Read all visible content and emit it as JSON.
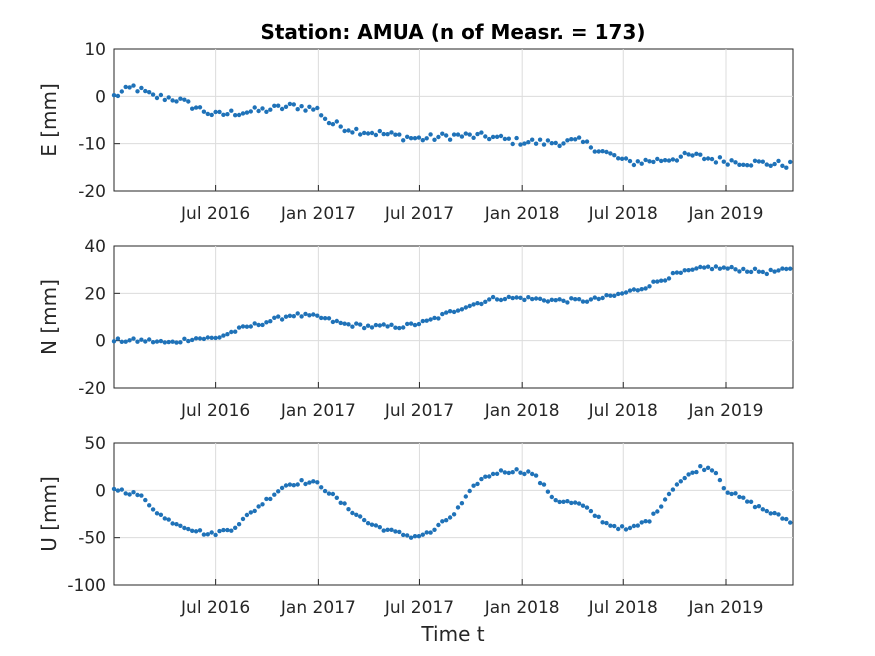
{
  "figure": {
    "title": "Station: AMUA (n of Measr. = 173)",
    "xlabel": "Time t"
  },
  "chart_data": [
    {
      "type": "scatter",
      "ylabel": "E [mm]",
      "xlim": [
        "2016-01-01",
        "2019-05-01"
      ],
      "ylim": [
        -20,
        10
      ],
      "yticks": [
        "10",
        "0",
        "-10",
        "-20"
      ],
      "xticks": [
        {
          "label": "Jul 2016",
          "date": "2016-07-01"
        },
        {
          "label": "Jan 2017",
          "date": "2017-01-01"
        },
        {
          "label": "Jul 2017",
          "date": "2017-07-01"
        },
        {
          "label": "Jan 2018",
          "date": "2018-01-01"
        },
        {
          "label": "Jul 2018",
          "date": "2018-07-01"
        },
        {
          "label": "Jan 2019",
          "date": "2019-01-01"
        }
      ],
      "grid": true,
      "color": "#1f72b8",
      "series": [
        {
          "knots": [
            [
              "2016-01-01",
              0
            ],
            [
              "2016-02-05",
              2
            ],
            [
              "2016-03-10",
              0
            ],
            [
              "2016-04-20",
              -0.5
            ],
            [
              "2016-05-20",
              -2
            ],
            [
              "2016-06-30",
              -4
            ],
            [
              "2016-08-01",
              -3.5
            ],
            [
              "2016-09-20",
              -3
            ],
            [
              "2016-11-20",
              -2
            ],
            [
              "2016-12-31",
              -2.8
            ],
            [
              "2017-01-20",
              -5.5
            ],
            [
              "2017-03-01",
              -7
            ],
            [
              "2017-05-01",
              -8
            ],
            [
              "2017-07-01",
              -9
            ],
            [
              "2017-09-01",
              -8.3
            ],
            [
              "2017-11-01",
              -8.5
            ],
            [
              "2017-12-20",
              -9.5
            ],
            [
              "2018-02-15",
              -9.8
            ],
            [
              "2018-04-15",
              -9.5
            ],
            [
              "2018-06-01",
              -12
            ],
            [
              "2018-07-10",
              -14
            ],
            [
              "2018-09-01",
              -13.5
            ],
            [
              "2018-11-01",
              -12.5
            ],
            [
              "2018-12-20",
              -13.5
            ],
            [
              "2019-02-15",
              -14
            ],
            [
              "2019-05-01",
              -14.5
            ]
          ],
          "noise": 0.8
        }
      ]
    },
    {
      "type": "scatter",
      "ylabel": "N [mm]",
      "xlim": [
        "2016-01-01",
        "2019-05-01"
      ],
      "ylim": [
        -20,
        40
      ],
      "yticks": [
        "40",
        "20",
        "0",
        "-20"
      ],
      "xticks": [
        {
          "label": "Jul 2016",
          "date": "2016-07-01"
        },
        {
          "label": "Jan 2017",
          "date": "2017-01-01"
        },
        {
          "label": "Jul 2017",
          "date": "2017-07-01"
        },
        {
          "label": "Jan 2018",
          "date": "2018-01-01"
        },
        {
          "label": "Jul 2018",
          "date": "2018-07-01"
        },
        {
          "label": "Jan 2019",
          "date": "2019-01-01"
        }
      ],
      "grid": true,
      "color": "#1f72b8",
      "series": [
        {
          "knots": [
            [
              "2016-01-01",
              0
            ],
            [
              "2016-03-01",
              0
            ],
            [
              "2016-04-10",
              -1
            ],
            [
              "2016-05-20",
              1
            ],
            [
              "2016-07-01",
              1
            ],
            [
              "2016-08-15",
              5
            ],
            [
              "2016-10-01",
              8
            ],
            [
              "2016-11-15",
              11
            ],
            [
              "2017-01-01",
              10
            ],
            [
              "2017-02-15",
              7
            ],
            [
              "2017-04-01",
              6
            ],
            [
              "2017-06-01",
              6
            ],
            [
              "2017-07-15",
              8
            ],
            [
              "2017-09-15",
              14
            ],
            [
              "2017-11-15",
              18
            ],
            [
              "2018-01-01",
              18
            ],
            [
              "2018-03-01",
              17
            ],
            [
              "2018-05-01",
              17
            ],
            [
              "2018-06-15",
              19
            ],
            [
              "2018-08-01",
              22
            ],
            [
              "2018-10-01",
              28
            ],
            [
              "2018-12-01",
              31
            ],
            [
              "2019-02-01",
              30
            ],
            [
              "2019-03-15",
              29
            ],
            [
              "2019-05-01",
              30
            ]
          ],
          "noise": 0.9
        }
      ]
    },
    {
      "type": "scatter",
      "ylabel": "U [mm]",
      "xlim": [
        "2016-01-01",
        "2019-05-01"
      ],
      "ylim": [
        -100,
        50
      ],
      "yticks": [
        "50",
        "0",
        "-50",
        "-100"
      ],
      "xticks": [
        {
          "label": "Jul 2016",
          "date": "2016-07-01"
        },
        {
          "label": "Jan 2017",
          "date": "2017-01-01"
        },
        {
          "label": "Jul 2017",
          "date": "2017-07-01"
        },
        {
          "label": "Jan 2018",
          "date": "2018-01-01"
        },
        {
          "label": "Jul 2018",
          "date": "2018-07-01"
        },
        {
          "label": "Jan 2019",
          "date": "2019-01-01"
        }
      ],
      "grid": true,
      "color": "#1f72b8",
      "series": [
        {
          "knots": [
            [
              "2016-01-01",
              2
            ],
            [
              "2016-02-15",
              -5
            ],
            [
              "2016-04-01",
              -30
            ],
            [
              "2016-05-15",
              -40
            ],
            [
              "2016-06-20",
              -47
            ],
            [
              "2016-08-01",
              -40
            ],
            [
              "2016-09-20",
              -15
            ],
            [
              "2016-11-01",
              5
            ],
            [
              "2016-12-01",
              9
            ],
            [
              "2017-01-01",
              7
            ],
            [
              "2017-02-15",
              -15
            ],
            [
              "2017-04-01",
              -35
            ],
            [
              "2017-05-15",
              -44
            ],
            [
              "2017-06-20",
              -49
            ],
            [
              "2017-07-20",
              -45
            ],
            [
              "2017-09-01",
              -25
            ],
            [
              "2017-10-15",
              10
            ],
            [
              "2017-11-15",
              19
            ],
            [
              "2017-12-20",
              21
            ],
            [
              "2018-01-20",
              18
            ],
            [
              "2018-03-01",
              -10
            ],
            [
              "2018-04-15",
              -15
            ],
            [
              "2018-06-01",
              -35
            ],
            [
              "2018-07-10",
              -42
            ],
            [
              "2018-08-20",
              -30
            ],
            [
              "2018-10-01",
              5
            ],
            [
              "2018-11-15",
              24
            ],
            [
              "2018-12-10",
              23
            ],
            [
              "2019-01-01",
              0
            ],
            [
              "2019-03-01",
              -18
            ],
            [
              "2019-05-01",
              -34
            ]
          ],
          "noise": 2.2
        }
      ]
    }
  ]
}
